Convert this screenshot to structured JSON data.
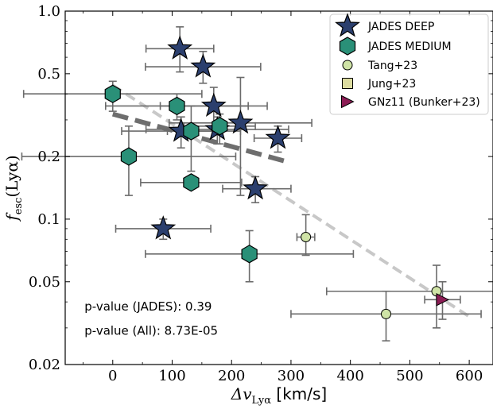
{
  "chart_data": {
    "type": "scatter",
    "xlabel": "Δv",
    "xlabel_sub": "Lyα",
    "xlabel_unit": "[km/s]",
    "ylabel": "f",
    "ylabel_sub": "esc",
    "ylabel_arg": "(Lyα)",
    "xlim": [
      -80,
      640
    ],
    "ylim": [
      0.02,
      1.0
    ],
    "yscale": "log",
    "x_ticks": [
      0,
      100,
      200,
      300,
      400,
      500,
      600
    ],
    "y_ticks": [
      0.02,
      0.05,
      0.1,
      0.2,
      0.5,
      1.0
    ],
    "y_tick_labels": [
      "0.02",
      "0.05",
      "0.1",
      "0.2",
      "0.5",
      "1.0"
    ],
    "legend_position": "top-right",
    "series": [
      {
        "name": "JADES DEEP",
        "marker": "star",
        "color": "#2b3f6e",
        "points": [
          {
            "x": 113,
            "y": 0.66,
            "xerr": [
              57,
              57
            ],
            "yerr_lo": 0.51,
            "yerr_hi": 0.84
          },
          {
            "x": 152,
            "y": 0.54,
            "xerr": [
              97,
              97
            ],
            "yerr_lo": 0.45,
            "yerr_hi": 0.64
          },
          {
            "x": 170,
            "y": 0.35,
            "xerr": [
              90,
              90
            ],
            "yerr_lo": 0.28,
            "yerr_hi": 0.43
          },
          {
            "x": 115,
            "y": 0.265,
            "xerr": [
              100,
              100
            ],
            "yerr_lo": 0.22,
            "yerr_hi": 0.31
          },
          {
            "x": 176,
            "y": 0.27,
            "xerr": [
              120,
              120
            ],
            "yerr_lo": 0.23,
            "yerr_hi": 0.31
          },
          {
            "x": 215,
            "y": 0.29,
            "xerr": [
              120,
              120
            ],
            "yerr_lo": 0.13,
            "yerr_hi": 0.48
          },
          {
            "x": 278,
            "y": 0.245,
            "xerr": [
              40,
              40
            ],
            "yerr_lo": 0.21,
            "yerr_hi": 0.28
          },
          {
            "x": 240,
            "y": 0.14,
            "xerr": [
              55,
              60
            ],
            "yerr_lo": 0.12,
            "yerr_hi": 0.16
          },
          {
            "x": 85,
            "y": 0.09,
            "xerr": [
              80,
              80
            ],
            "yerr_lo": 0.08,
            "yerr_hi": 0.1
          }
        ]
      },
      {
        "name": "JADES MEDIUM",
        "marker": "hexagon",
        "color": "#2a9078",
        "points": [
          {
            "x": 0,
            "y": 0.4,
            "xerr": [
              150,
              150
            ],
            "yerr_lo": 0.33,
            "yerr_hi": 0.46
          },
          {
            "x": 108,
            "y": 0.35,
            "xerr": [
              120,
              120
            ],
            "yerr_lo": 0.3,
            "yerr_hi": 0.4
          },
          {
            "x": 27,
            "y": 0.2,
            "xerr": [
              180,
              180
            ],
            "yerr_lo": 0.13,
            "yerr_hi": 0.28
          },
          {
            "x": 132,
            "y": 0.265,
            "xerr": [
              40,
              40
            ],
            "yerr_lo": 0.17,
            "yerr_hi": 0.35
          },
          {
            "x": 180,
            "y": 0.28,
            "xerr": [
              60,
              60
            ],
            "yerr_lo": 0.23,
            "yerr_hi": 0.32
          },
          {
            "x": 132,
            "y": 0.15,
            "xerr": [
              85,
              85
            ],
            "yerr_lo": 0.14,
            "yerr_hi": 0.16
          },
          {
            "x": 230,
            "y": 0.068,
            "xerr": [
              175,
              175
            ],
            "yerr_lo": 0.05,
            "yerr_hi": 0.088
          }
        ]
      },
      {
        "name": "Tang+23",
        "marker": "circle",
        "color": "#cfe3a6",
        "points": [
          {
            "x": 325,
            "y": 0.082,
            "xerr": [
              15,
              15
            ],
            "yerr_lo": 0.067,
            "yerr_hi": 0.105
          },
          {
            "x": 545,
            "y": 0.045,
            "xerr": [
              185,
              100
            ],
            "yerr_lo": 0.03,
            "yerr_hi": 0.06
          },
          {
            "x": 460,
            "y": 0.035,
            "xerr": [
              160,
              160
            ],
            "yerr_lo": 0.026,
            "yerr_hi": 0.045
          }
        ]
      },
      {
        "name": "Jung+23",
        "marker": "square",
        "color": "#dcdca0",
        "points": []
      },
      {
        "name": "GNz11 (Bunker+23)",
        "marker": "triangle-right",
        "color": "#8c1d55",
        "points": [
          {
            "x": 555,
            "y": 0.041,
            "xerr": [
              30,
              30
            ],
            "yerr_lo": 0.033,
            "yerr_hi": 0.05
          }
        ]
      }
    ],
    "fits": [
      {
        "style": "dashed-thick",
        "color": "#6e6e6e",
        "x": [
          0,
          290
        ],
        "y": [
          0.32,
          0.19
        ]
      },
      {
        "style": "dashed-thin",
        "color": "#c8c8c8",
        "x": [
          0,
          600
        ],
        "y": [
          0.44,
          0.034
        ]
      }
    ],
    "annotations": [
      {
        "text": "p-value (JADES): 0.39",
        "x": -2,
        "y": 0.038
      },
      {
        "text": "p-value (All): 8.73E-05",
        "x": -2,
        "y": 0.029
      }
    ]
  }
}
